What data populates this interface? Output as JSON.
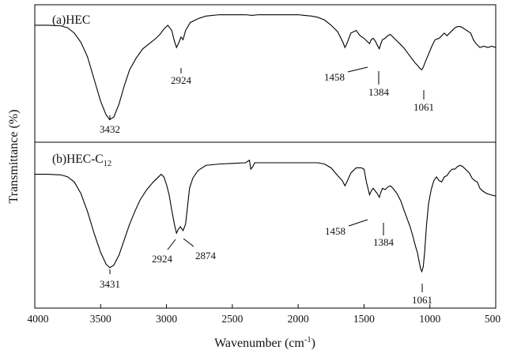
{
  "chart_data": {
    "type": "line",
    "xlabel": "Wavenumber (cm",
    "xlabel_sup": "-1",
    "xlabel_end": ")",
    "ylabel": "Transmittance (%)",
    "xlim": [
      4000,
      500
    ],
    "x_reversed": true,
    "xticks": [
      4000,
      3500,
      3000,
      2500,
      2000,
      1500,
      1000,
      500
    ],
    "grid": false,
    "panels": [
      {
        "label": "(a)HEC",
        "label_sub": "",
        "ylim": [
          0,
          100
        ],
        "series": [
          {
            "points": [
              [
                4000,
                88
              ],
              [
                3900,
                88
              ],
              [
                3800,
                87.5
              ],
              [
                3750,
                86
              ],
              [
                3700,
                82
              ],
              [
                3650,
                75
              ],
              [
                3600,
                64
              ],
              [
                3550,
                47
              ],
              [
                3500,
                30
              ],
              [
                3460,
                20
              ],
              [
                3432,
                16
              ],
              [
                3400,
                18
              ],
              [
                3360,
                28
              ],
              [
                3320,
                42
              ],
              [
                3280,
                54
              ],
              [
                3230,
                63
              ],
              [
                3180,
                70
              ],
              [
                3130,
                74
              ],
              [
                3080,
                78
              ],
              [
                3050,
                81
              ],
              [
                3020,
                85
              ],
              [
                2990,
                88
              ],
              [
                2960,
                84
              ],
              [
                2940,
                76
              ],
              [
                2924,
                71
              ],
              [
                2905,
                75
              ],
              [
                2890,
                79
              ],
              [
                2874,
                77
              ],
              [
                2855,
                84
              ],
              [
                2820,
                90
              ],
              [
                2760,
                93
              ],
              [
                2700,
                95
              ],
              [
                2600,
                96
              ],
              [
                2500,
                96
              ],
              [
                2400,
                96
              ],
              [
                2350,
                95.5
              ],
              [
                2300,
                96
              ],
              [
                2200,
                96
              ],
              [
                2100,
                96
              ],
              [
                2000,
                96
              ],
              [
                1900,
                95
              ],
              [
                1850,
                94
              ],
              [
                1800,
                92
              ],
              [
                1750,
                88
              ],
              [
                1700,
                83
              ],
              [
                1660,
                75
              ],
              [
                1645,
                71
              ],
              [
                1630,
                74
              ],
              [
                1600,
                82
              ],
              [
                1560,
                84
              ],
              [
                1530,
                80
              ],
              [
                1500,
                78
              ],
              [
                1480,
                76
              ],
              [
                1458,
                74
              ],
              [
                1445,
                77
              ],
              [
                1430,
                78
              ],
              [
                1415,
                76
              ],
              [
                1400,
                73
              ],
              [
                1384,
                70
              ],
              [
                1372,
                74
              ],
              [
                1360,
                77
              ],
              [
                1340,
                78
              ],
              [
                1320,
                80
              ],
              [
                1300,
                81
              ],
              [
                1280,
                79
              ],
              [
                1250,
                76
              ],
              [
                1220,
                73
              ],
              [
                1200,
                71
              ],
              [
                1170,
                67
              ],
              [
                1140,
                63
              ],
              [
                1110,
                59
              ],
              [
                1090,
                57
              ],
              [
                1075,
                55
              ],
              [
                1061,
                54
              ],
              [
                1050,
                56
              ],
              [
                1035,
                60
              ],
              [
                1010,
                66
              ],
              [
                985,
                72
              ],
              [
                960,
                77
              ],
              [
                930,
                78
              ],
              [
                910,
                80
              ],
              [
                890,
                82
              ],
              [
                870,
                80
              ],
              [
                850,
                82
              ],
              [
                830,
                84
              ],
              [
                810,
                86
              ],
              [
                790,
                87
              ],
              [
                770,
                87
              ],
              [
                750,
                86
              ],
              [
                720,
                84
              ],
              [
                690,
                82
              ],
              [
                670,
                77
              ],
              [
                650,
                74
              ],
              [
                620,
                71
              ],
              [
                590,
                72
              ],
              [
                560,
                71
              ],
              [
                530,
                72
              ],
              [
                500,
                71
              ]
            ]
          }
        ],
        "annotations": [
          "3432",
          "2924",
          "1458",
          "1384",
          "1061"
        ]
      },
      {
        "label": "(b)HEC-C",
        "label_sub": "12",
        "ylim": [
          0,
          100
        ],
        "series": [
          {
            "points": [
              [
                4000,
                91
              ],
              [
                3900,
                91
              ],
              [
                3800,
                90.5
              ],
              [
                3750,
                89
              ],
              [
                3700,
                85
              ],
              [
                3650,
                76
              ],
              [
                3600,
                62
              ],
              [
                3550,
                45
              ],
              [
                3500,
                30
              ],
              [
                3460,
                21
              ],
              [
                3431,
                18
              ],
              [
                3400,
                20
              ],
              [
                3360,
                28
              ],
              [
                3320,
                40
              ],
              [
                3280,
                52
              ],
              [
                3240,
                62
              ],
              [
                3200,
                71
              ],
              [
                3150,
                79
              ],
              [
                3100,
                85
              ],
              [
                3060,
                89
              ],
              [
                3040,
                91
              ],
              [
                3020,
                89
              ],
              [
                3000,
                83
              ],
              [
                2980,
                75
              ],
              [
                2960,
                63
              ],
              [
                2940,
                52
              ],
              [
                2924,
                45
              ],
              [
                2910,
                48
              ],
              [
                2895,
                50
              ],
              [
                2874,
                47
              ],
              [
                2855,
                52
              ],
              [
                2840,
                66
              ],
              [
                2825,
                80
              ],
              [
                2800,
                88
              ],
              [
                2760,
                94
              ],
              [
                2700,
                98
              ],
              [
                2600,
                99
              ],
              [
                2500,
                99.5
              ],
              [
                2400,
                100
              ],
              [
                2370,
                102
              ],
              [
                2360,
                95
              ],
              [
                2345,
                97
              ],
              [
                2330,
                100
              ],
              [
                2300,
                100
              ],
              [
                2200,
                100
              ],
              [
                2100,
                100
              ],
              [
                2000,
                100
              ],
              [
                1900,
                100
              ],
              [
                1850,
                100
              ],
              [
                1800,
                99
              ],
              [
                1750,
                96
              ],
              [
                1700,
                90
              ],
              [
                1665,
                86
              ],
              [
                1645,
                82
              ],
              [
                1630,
                85
              ],
              [
                1600,
                92
              ],
              [
                1560,
                96
              ],
              [
                1520,
                96
              ],
              [
                1500,
                95
              ],
              [
                1480,
                84
              ],
              [
                1465,
                78
              ],
              [
                1458,
                75
              ],
              [
                1445,
                78
              ],
              [
                1430,
                80
              ],
              [
                1415,
                78
              ],
              [
                1400,
                76
              ],
              [
                1384,
                73
              ],
              [
                1372,
                77
              ],
              [
                1360,
                80
              ],
              [
                1340,
                79
              ],
              [
                1320,
                81
              ],
              [
                1300,
                82
              ],
              [
                1280,
                80
              ],
              [
                1250,
                76
              ],
              [
                1220,
                70
              ],
              [
                1200,
                64
              ],
              [
                1175,
                57
              ],
              [
                1150,
                50
              ],
              [
                1130,
                43
              ],
              [
                1110,
                35
              ],
              [
                1095,
                30
              ],
              [
                1080,
                22
              ],
              [
                1070,
                17
              ],
              [
                1061,
                15
              ],
              [
                1050,
                19
              ],
              [
                1040,
                30
              ],
              [
                1025,
                52
              ],
              [
                1010,
                68
              ],
              [
                990,
                79
              ],
              [
                970,
                86
              ],
              [
                950,
                89
              ],
              [
                930,
                86
              ],
              [
                910,
                85
              ],
              [
                890,
                89
              ],
              [
                870,
                90
              ],
              [
                850,
                93
              ],
              [
                830,
                95
              ],
              [
                810,
                95
              ],
              [
                790,
                97
              ],
              [
                770,
                98
              ],
              [
                750,
                97
              ],
              [
                720,
                94
              ],
              [
                700,
                92
              ],
              [
                680,
                88
              ],
              [
                660,
                86
              ],
              [
                640,
                85
              ],
              [
                620,
                80
              ],
              [
                600,
                78
              ],
              [
                570,
                76
              ],
              [
                540,
                75
              ],
              [
                500,
                74
              ]
            ]
          }
        ],
        "annotations": [
          "3431",
          "2924",
          "2874",
          "1458",
          "1384",
          "1061"
        ]
      }
    ]
  }
}
